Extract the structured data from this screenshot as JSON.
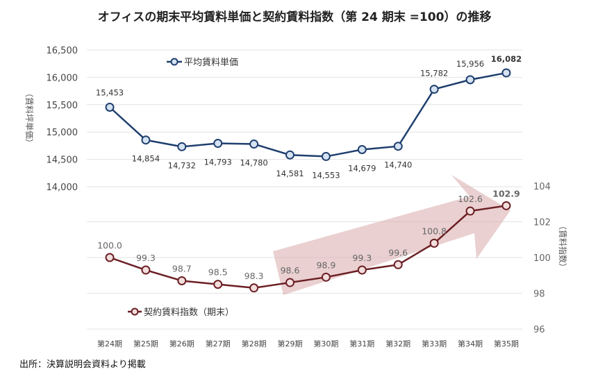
{
  "chart_data": {
    "type": "line",
    "title": "オフィスの期末平均賃料単価と契約賃料指数（第 24 期末 =100）の推移",
    "categories": [
      "第24期",
      "第25期",
      "第26期",
      "第27期",
      "第28期",
      "第29期",
      "第30期",
      "第31期",
      "第32期",
      "第33期",
      "第34期",
      "第35期"
    ],
    "series": [
      {
        "name": "平均賃料単価",
        "axis": "left",
        "color": "#1f3f6e",
        "marker_fill": "#d5e2f2",
        "values": [
          15453,
          14854,
          14732,
          14793,
          14780,
          14581,
          14553,
          14679,
          14740,
          15782,
          15956,
          16082
        ],
        "labels": [
          "15,453",
          "14,854",
          "14,732",
          "14,793",
          "14,780",
          "14,581",
          "14,553",
          "14,679",
          "14,740",
          "15,782",
          "15,956",
          "16,082"
        ]
      },
      {
        "name": "契約賃料指数（期末）",
        "axis": "right",
        "color": "#6b1f24",
        "marker_fill": "#f3dede",
        "values": [
          100.0,
          99.3,
          98.7,
          98.5,
          98.3,
          98.6,
          98.9,
          99.3,
          99.6,
          100.8,
          102.6,
          102.9
        ],
        "labels": [
          "100.0",
          "99.3",
          "98.7",
          "98.5",
          "98.3",
          "98.6",
          "98.9",
          "99.3",
          "99.6",
          "100.8",
          "102.6",
          "102.9"
        ]
      }
    ],
    "y_left": {
      "label": "（賃料坪単価）",
      "range": [
        14000,
        16500
      ],
      "ticks": [
        "14,000",
        "14,500",
        "15,000",
        "15,500",
        "16,000",
        "16,500"
      ]
    },
    "y_right": {
      "label": "（賃料指数）",
      "range": [
        96,
        104
      ],
      "ticks": [
        "96",
        "98",
        "100",
        "102",
        "104"
      ]
    },
    "grid": true,
    "trend_arrow_color": "#d9a9aa"
  },
  "source": "出所：決算説明会資料より掲載"
}
